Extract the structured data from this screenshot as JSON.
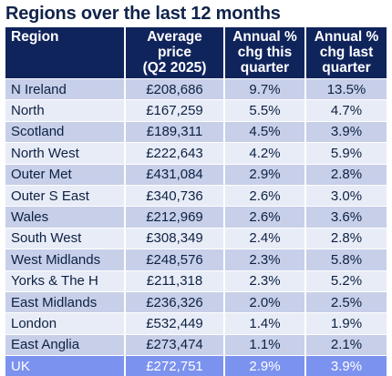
{
  "title": "Regions over the last 12 months",
  "table": {
    "headers": [
      [
        "Region"
      ],
      [
        "Average",
        "price",
        "(Q2 2025)"
      ],
      [
        "Annual %",
        "chg this",
        "quarter"
      ],
      [
        "Annual %",
        "chg last",
        "quarter"
      ]
    ],
    "rows": [
      [
        "N Ireland",
        "£208,686",
        "9.7%",
        "13.5%"
      ],
      [
        "North",
        "£167,259",
        "5.5%",
        "4.7%"
      ],
      [
        "Scotland",
        "£189,311",
        "4.5%",
        "3.9%"
      ],
      [
        "North West",
        "£222,643",
        "4.2%",
        "5.9%"
      ],
      [
        "Outer Met",
        "£431,084",
        "2.9%",
        "2.8%"
      ],
      [
        "Outer S East",
        "£340,736",
        "2.6%",
        "3.0%"
      ],
      [
        "Wales",
        "£212,969",
        "2.6%",
        "3.6%"
      ],
      [
        "South West",
        "£308,349",
        "2.4%",
        "2.8%"
      ],
      [
        "West Midlands",
        "£248,576",
        "2.3%",
        "5.8%"
      ],
      [
        "Yorks & The H",
        "£211,318",
        "2.3%",
        "5.2%"
      ],
      [
        "East Midlands",
        "£236,326",
        "2.0%",
        "2.5%"
      ],
      [
        "London",
        "£532,449",
        "1.4%",
        "1.9%"
      ],
      [
        "East Anglia",
        "£273,474",
        "1.1%",
        "2.1%"
      ]
    ],
    "total": [
      "UK",
      "£272,751",
      "2.9%",
      "3.9%"
    ]
  },
  "colors": {
    "header_bg": "#10245c",
    "row_dark": "#c7cfe9",
    "row_light": "#e8ecf7",
    "total_row": "#7b92ef"
  }
}
